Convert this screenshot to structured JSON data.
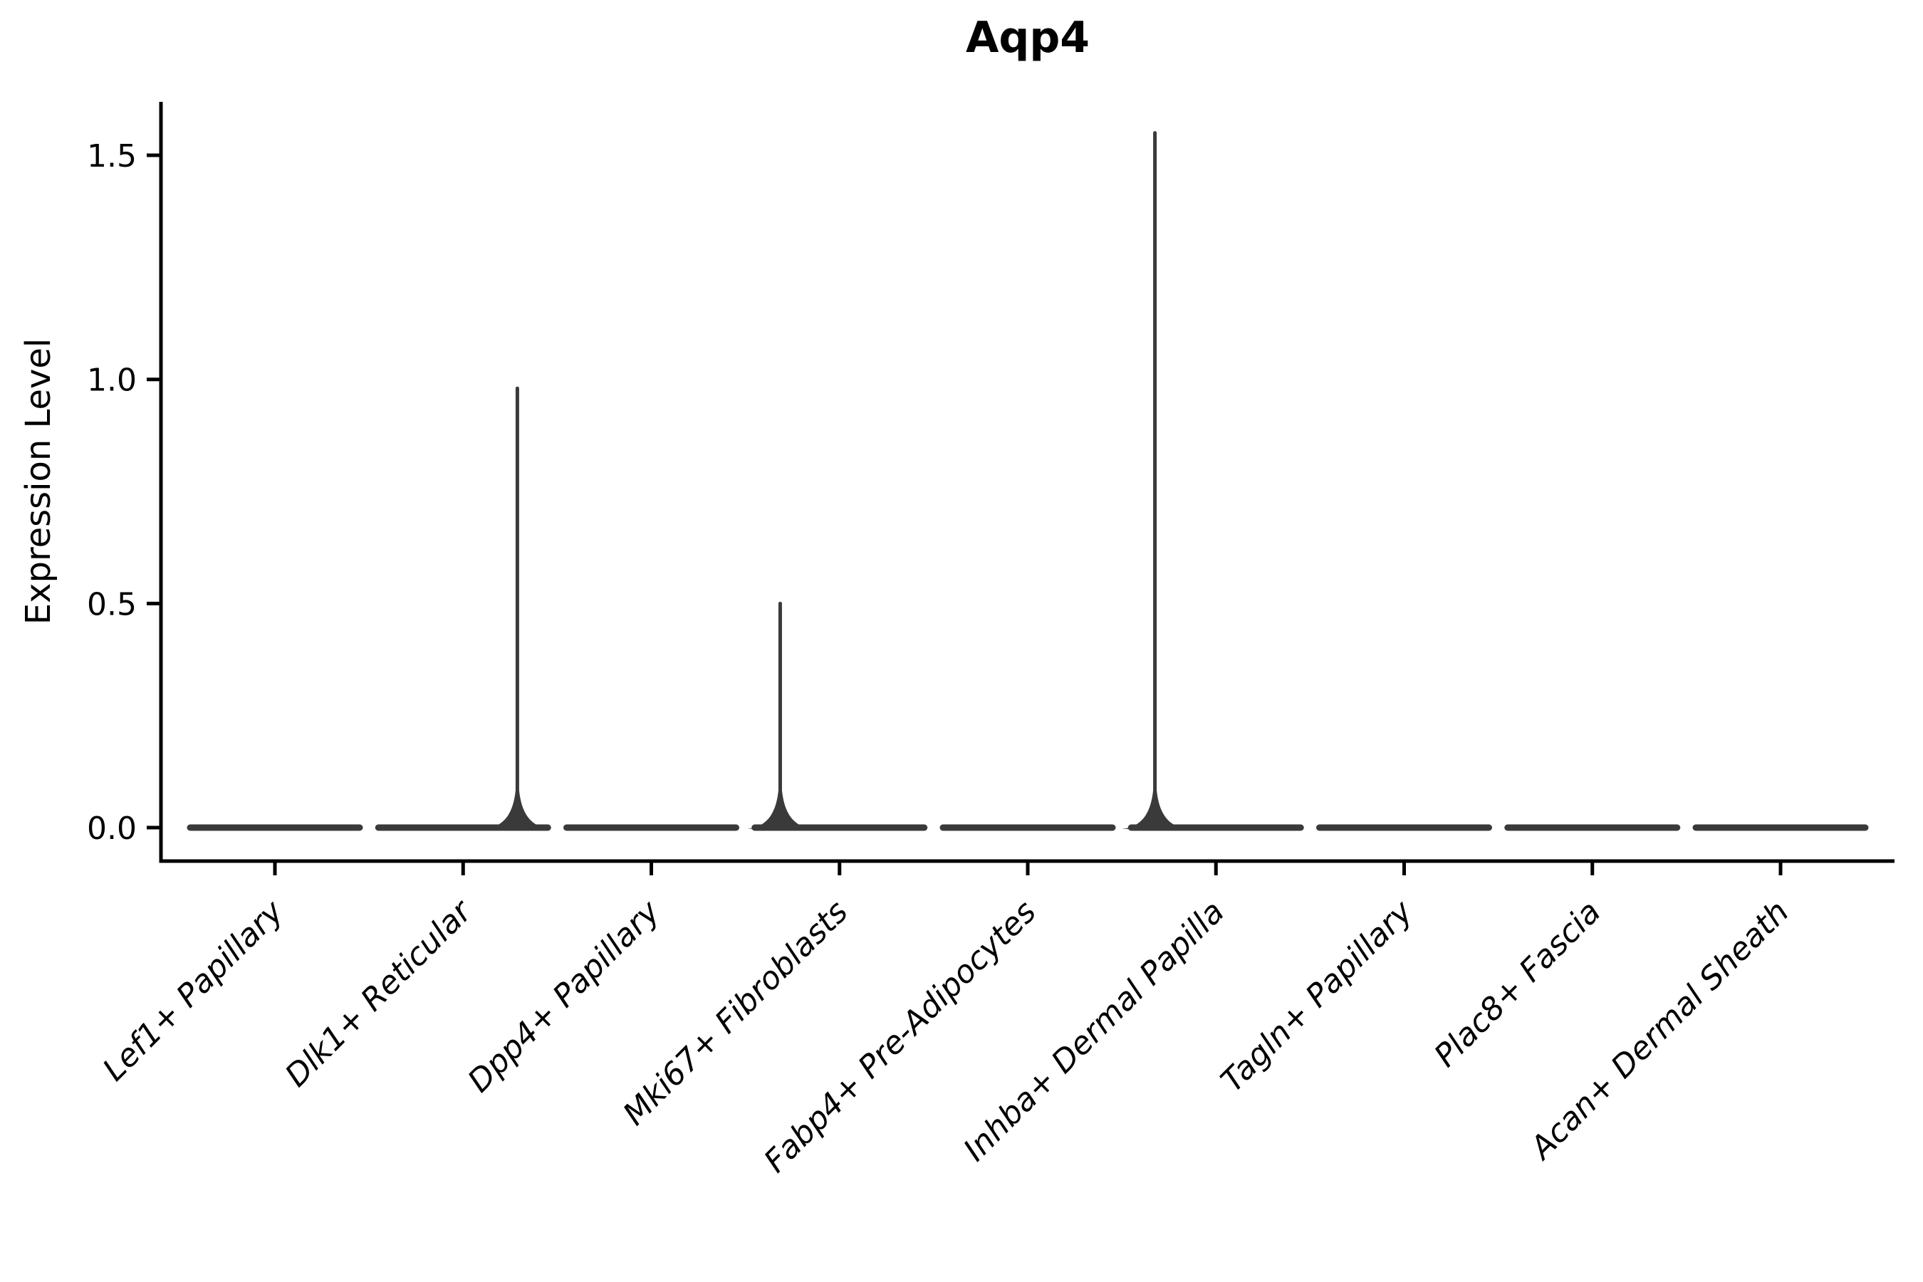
{
  "title": "Aqp4",
  "ylabel": "Expression Level",
  "chart_data": {
    "type": "violin",
    "title": "Aqp4",
    "xlabel": "",
    "ylabel": "Expression Level",
    "grid": false,
    "legend_position": "none",
    "ylim": [
      -0.075,
      1.62
    ],
    "ytick_values": [
      0.0,
      0.5,
      1.0,
      1.5
    ],
    "ytick_labels": [
      "0.0",
      "0.5",
      "1.0",
      "1.5"
    ],
    "categories": [
      "Lef1+ Papillary",
      "Dlk1+ Reticular",
      "Dpp4+ Papillary",
      "Mki67+ Fibroblasts",
      "Fabp4+ Pre-Adipocytes",
      "Inhba+ Dermal Papilla",
      "Tagln+ Papillary",
      "Plac8+ Fascia",
      "Acan+ Dermal Sheath"
    ],
    "series": [
      {
        "label": "Lef1+ Papillary",
        "baseline_value": 0.0,
        "max_expression": 0.0,
        "has_spike": false,
        "spike_offset_frac": 0.0
      },
      {
        "label": "Dlk1+ Reticular",
        "baseline_value": 0.0,
        "max_expression": 0.98,
        "has_spike": true,
        "spike_offset_frac": 0.64
      },
      {
        "label": "Dpp4+ Papillary",
        "baseline_value": 0.0,
        "max_expression": 0.0,
        "has_spike": false,
        "spike_offset_frac": 0.0
      },
      {
        "label": "Mki67+ Fibroblasts",
        "baseline_value": 0.0,
        "max_expression": 0.5,
        "has_spike": true,
        "spike_offset_frac": -0.7
      },
      {
        "label": "Fabp4+ Pre-Adipocytes",
        "baseline_value": 0.0,
        "max_expression": 0.0,
        "has_spike": false,
        "spike_offset_frac": 0.0
      },
      {
        "label": "Inhba+ Dermal Papilla",
        "baseline_value": 0.0,
        "max_expression": 1.55,
        "has_spike": true,
        "spike_offset_frac": -0.72
      },
      {
        "label": "Tagln+ Papillary",
        "baseline_value": 0.0,
        "max_expression": 0.0,
        "has_spike": false,
        "spike_offset_frac": 0.0
      },
      {
        "label": "Plac8+ Fascia",
        "baseline_value": 0.0,
        "max_expression": 0.0,
        "has_spike": false,
        "spike_offset_frac": 0.0
      },
      {
        "label": "Acan+ Dermal Sheath",
        "baseline_value": 0.0,
        "max_expression": 0.0,
        "has_spike": false,
        "spike_offset_frac": 0.0
      }
    ],
    "colors": {
      "axis": "#000000",
      "violin": "#3a3a3a",
      "background": "#ffffff"
    }
  }
}
